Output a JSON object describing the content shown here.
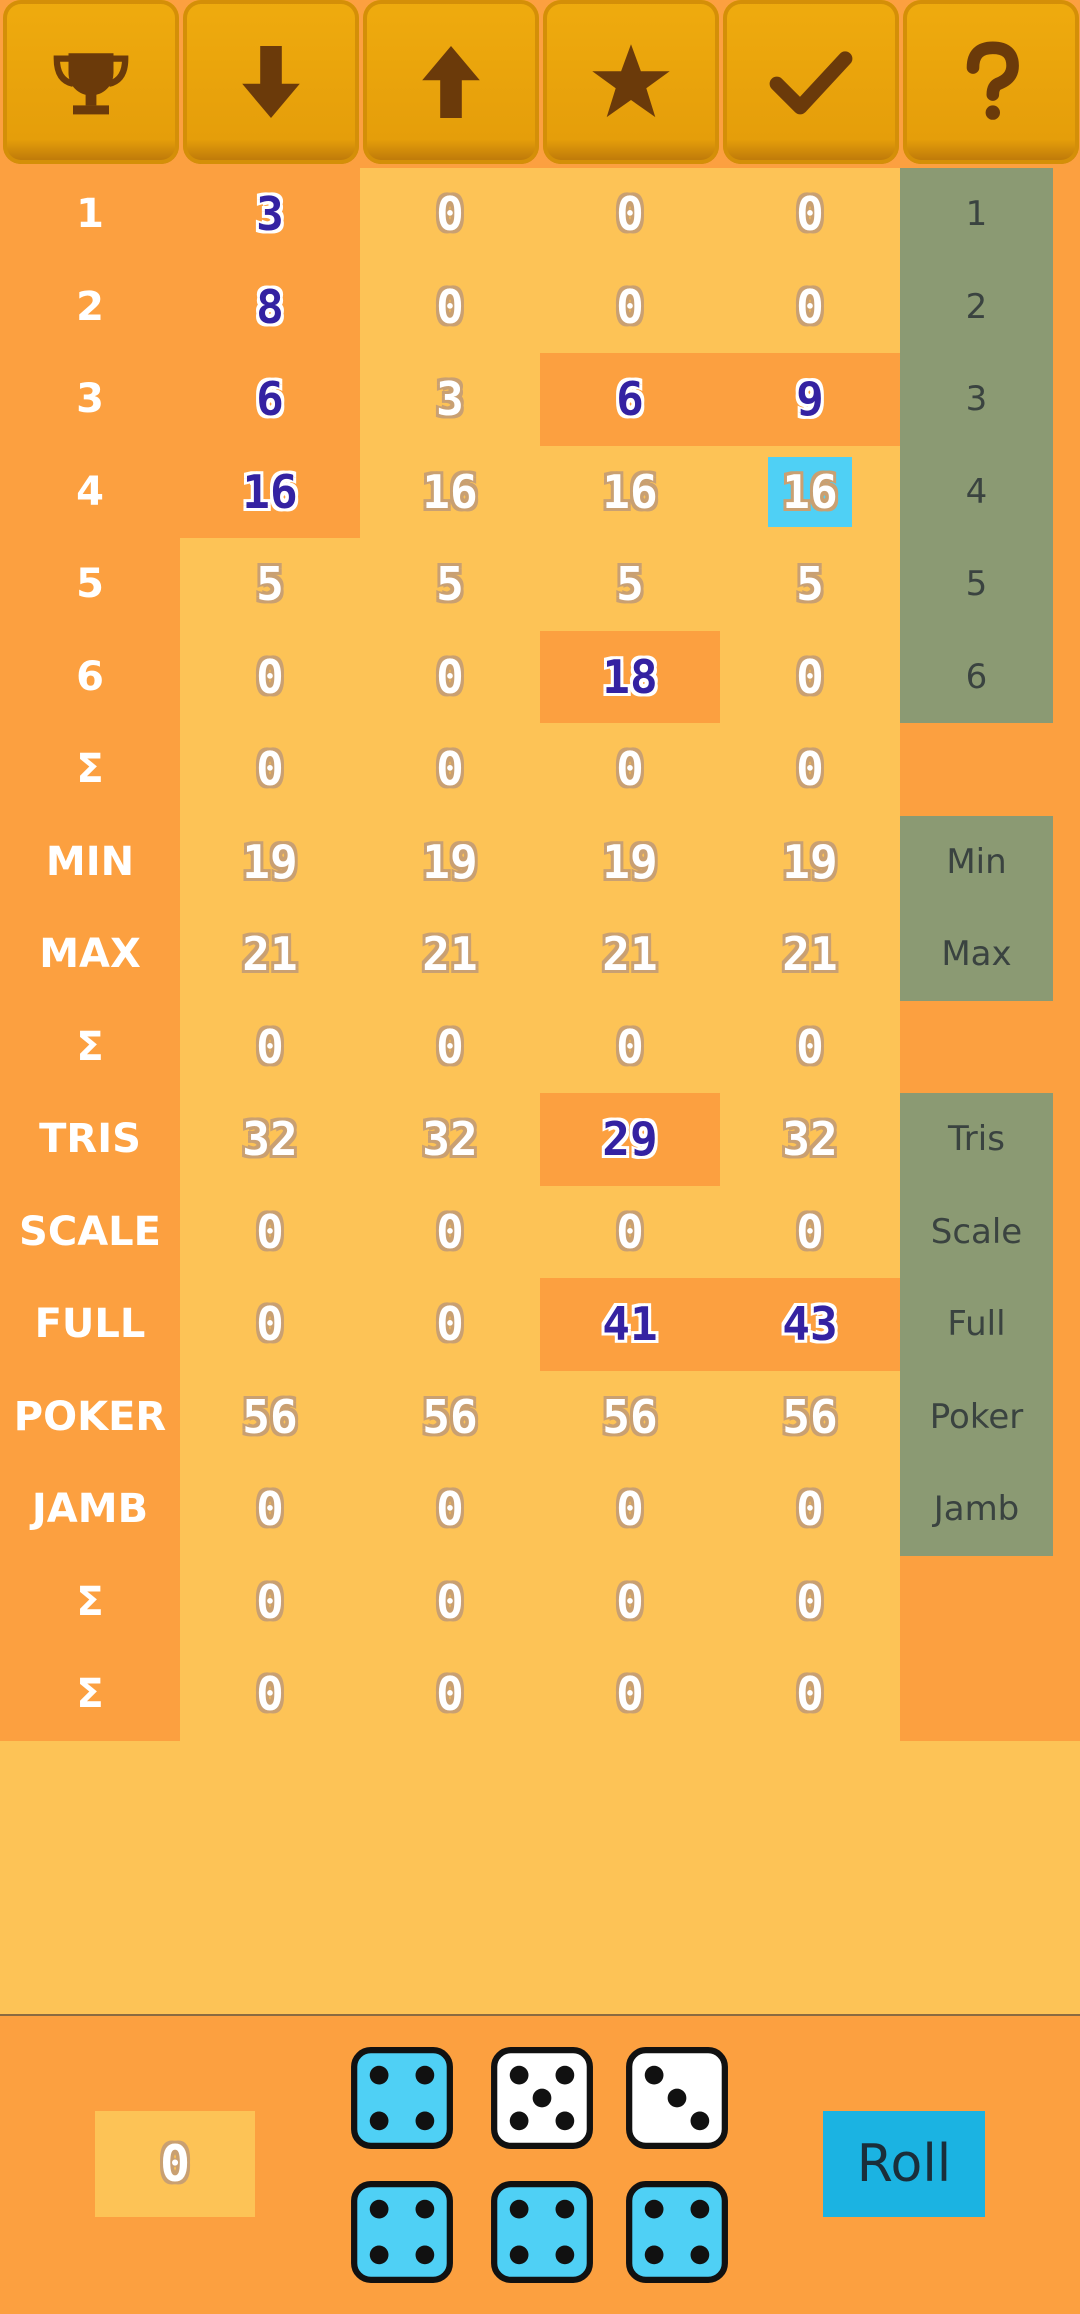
{
  "toolbar": {
    "icons": [
      "trophy-icon",
      "arrow-down-icon",
      "arrow-up-icon",
      "star-icon",
      "check-icon",
      "question-icon"
    ],
    "icon_color": "#6B3A0A"
  },
  "rows": [
    {
      "label": "1",
      "values": [
        "3",
        "0",
        "0",
        "0"
      ],
      "blue": [
        true,
        false,
        false,
        false
      ],
      "hl": [
        true,
        false,
        false,
        false
      ],
      "right": "1"
    },
    {
      "label": "2",
      "values": [
        "8",
        "0",
        "0",
        "0"
      ],
      "blue": [
        true,
        false,
        false,
        false
      ],
      "hl": [
        true,
        false,
        false,
        false
      ],
      "right": "2"
    },
    {
      "label": "3",
      "values": [
        "6",
        "3",
        "6",
        "9"
      ],
      "blue": [
        true,
        false,
        true,
        true
      ],
      "hl": [
        true,
        false,
        true,
        true
      ],
      "right": "3"
    },
    {
      "label": "4",
      "values": [
        "16",
        "16",
        "16",
        "16"
      ],
      "blue": [
        true,
        false,
        false,
        false
      ],
      "hl": [
        true,
        false,
        false,
        false
      ],
      "sel": [
        false,
        false,
        false,
        true
      ],
      "right": "4"
    },
    {
      "label": "5",
      "values": [
        "5",
        "5",
        "5",
        "5"
      ],
      "blue": [
        false,
        false,
        false,
        false
      ],
      "hl": [
        false,
        false,
        false,
        false
      ],
      "right": "5"
    },
    {
      "label": "6",
      "values": [
        "0",
        "0",
        "18",
        "0"
      ],
      "blue": [
        false,
        false,
        true,
        false
      ],
      "hl": [
        false,
        false,
        true,
        false
      ],
      "right": "6"
    },
    {
      "label": "Σ",
      "values": [
        "0",
        "0",
        "0",
        "0"
      ],
      "blue": [
        false,
        false,
        false,
        false
      ],
      "hl": [
        false,
        false,
        false,
        false
      ],
      "right": ""
    },
    {
      "label": "MIN",
      "values": [
        "19",
        "19",
        "19",
        "19"
      ],
      "blue": [
        false,
        false,
        false,
        false
      ],
      "hl": [
        false,
        false,
        false,
        false
      ],
      "right": "Min"
    },
    {
      "label": "MAX",
      "values": [
        "21",
        "21",
        "21",
        "21"
      ],
      "blue": [
        false,
        false,
        false,
        false
      ],
      "hl": [
        false,
        false,
        false,
        false
      ],
      "right": "Max"
    },
    {
      "label": "Σ",
      "values": [
        "0",
        "0",
        "0",
        "0"
      ],
      "blue": [
        false,
        false,
        false,
        false
      ],
      "hl": [
        false,
        false,
        false,
        false
      ],
      "right": ""
    },
    {
      "label": "TRIS",
      "values": [
        "32",
        "32",
        "29",
        "32"
      ],
      "blue": [
        false,
        false,
        true,
        false
      ],
      "hl": [
        false,
        false,
        true,
        false
      ],
      "right": "Tris"
    },
    {
      "label": "SCALE",
      "values": [
        "0",
        "0",
        "0",
        "0"
      ],
      "blue": [
        false,
        false,
        false,
        false
      ],
      "hl": [
        false,
        false,
        false,
        false
      ],
      "right": "Scale"
    },
    {
      "label": "FULL",
      "values": [
        "0",
        "0",
        "41",
        "43"
      ],
      "blue": [
        false,
        false,
        true,
        true
      ],
      "hl": [
        false,
        false,
        true,
        true
      ],
      "right": "Full"
    },
    {
      "label": "POKER",
      "values": [
        "56",
        "56",
        "56",
        "56"
      ],
      "blue": [
        false,
        false,
        false,
        false
      ],
      "hl": [
        false,
        false,
        false,
        false
      ],
      "right": "Poker"
    },
    {
      "label": "JAMB",
      "values": [
        "0",
        "0",
        "0",
        "0"
      ],
      "blue": [
        false,
        false,
        false,
        false
      ],
      "hl": [
        false,
        false,
        false,
        false
      ],
      "right": "Jamb"
    },
    {
      "label": "Σ",
      "values": [
        "0",
        "0",
        "0",
        "0"
      ],
      "blue": [
        false,
        false,
        false,
        false
      ],
      "hl": [
        false,
        false,
        false,
        false
      ],
      "right": ""
    },
    {
      "label": "Σ",
      "values": [
        "0",
        "0",
        "0",
        "0"
      ],
      "blue": [
        false,
        false,
        false,
        false
      ],
      "hl": [
        false,
        false,
        false,
        false
      ],
      "right": ""
    }
  ],
  "bottom": {
    "counter": "0",
    "roll_label": "Roll",
    "dice": [
      {
        "value": 4,
        "held": true
      },
      {
        "value": 5,
        "held": false
      },
      {
        "value": 3,
        "held": false
      },
      {
        "value": 4,
        "held": true
      },
      {
        "value": 4,
        "held": true
      },
      {
        "value": 4,
        "held": true
      }
    ],
    "held_color": "#4FD0F5",
    "free_color": "#FFFFFF"
  }
}
